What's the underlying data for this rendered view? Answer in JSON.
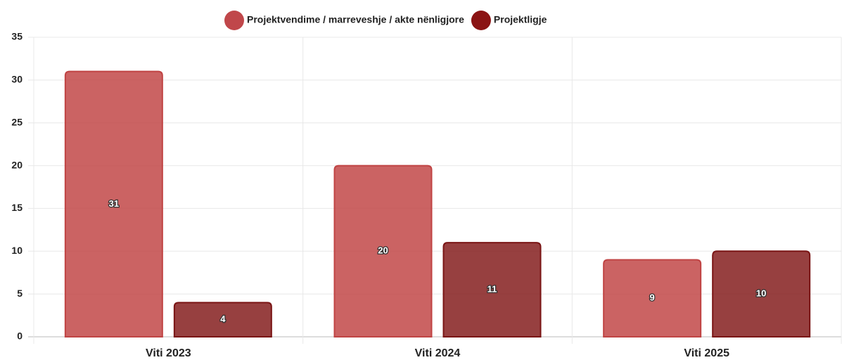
{
  "chart_data": {
    "type": "bar",
    "categories": [
      "Viti 2023",
      "Viti 2024",
      "Viti 2025"
    ],
    "series": [
      {
        "name": "Projektvendime / marreveshje / akte nënligjore",
        "color": "#c0474a",
        "values": [
          31,
          20,
          9
        ]
      },
      {
        "name": "Projektligje",
        "color": "#8b1414",
        "values": [
          4,
          11,
          10
        ]
      }
    ],
    "ylim": [
      0,
      35
    ],
    "yticks": [
      0,
      5,
      10,
      15,
      20,
      25,
      30,
      35
    ],
    "grid": true,
    "legend": "top"
  }
}
